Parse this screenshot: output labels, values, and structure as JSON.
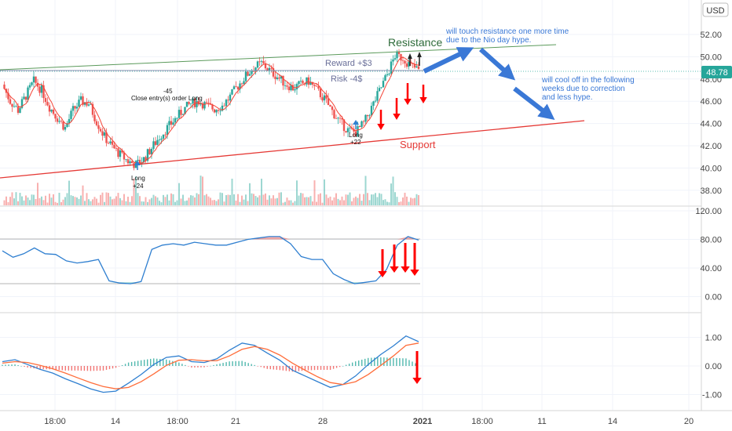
{
  "currency": "USD",
  "current_price": "48.78",
  "price_axis": {
    "ticks": [
      "52.00",
      "50.00",
      "48.00",
      "46.00",
      "44.00",
      "42.00",
      "40.00",
      "38.00"
    ],
    "values": [
      52,
      50,
      48,
      46,
      44,
      42,
      40,
      38
    ]
  },
  "oscillator_axis": {
    "ticks": [
      "120.00",
      "80.00",
      "40.00",
      "0.00"
    ],
    "values": [
      120,
      80,
      40,
      0
    ]
  },
  "macd_axis": {
    "ticks": [
      "1.00",
      "0.00",
      "-1.00"
    ],
    "values": [
      1,
      0,
      -1
    ]
  },
  "time_axis": {
    "ticks": [
      "18:00",
      "14",
      "18:00",
      "21",
      "28",
      "2021",
      "18:00",
      "11",
      "14",
      "20"
    ],
    "bold_index": 5
  },
  "annotations": {
    "resistance": "Resistance",
    "support": "Support",
    "reward": "Reward +$3",
    "risk": "Risk -4$",
    "trade_exit_amount": "-45",
    "trade_exit_label": "Close entry(s) order Long",
    "long1_label": "Long",
    "long1_amount": "+24",
    "long2_label": "Long",
    "long2_amount": "+22",
    "note_top": [
      "will touch resistance one more time",
      "due to the Nio day hype."
    ],
    "note_bottom": [
      "will cool off in the following",
      "weeks due to correction",
      "and less hype."
    ]
  },
  "colors": {
    "up": "#26a69a",
    "down": "#ef5350",
    "ma": "#f44336",
    "resistance": "#5b9a5b",
    "support": "#e53935",
    "note": "#3a78d6",
    "signal_arrow": "#ff0000",
    "blue_line": "#2f7fd0",
    "orange_line": "#ff6d3a"
  },
  "chart_data": {
    "type": "line",
    "title": "",
    "ylabel": "USD",
    "ylim": [
      37,
      53
    ],
    "x_ticks": [
      "18:00",
      "14",
      "18:00",
      "21",
      "28",
      "2021",
      "18:00",
      "11",
      "14",
      "20"
    ],
    "series": [
      {
        "values": [
          47.5,
          46.0,
          45.2,
          46.5,
          47.8,
          47.0,
          45.5,
          44.5,
          43.6,
          45.2,
          46.0,
          45.8,
          44.2,
          42.8,
          41.9,
          41.2,
          40.6,
          40.3,
          40.8,
          41.8,
          42.8,
          43.6,
          44.4,
          45.2,
          45.8,
          46.0,
          45.6,
          45.3,
          45.6,
          46.4,
          47.4,
          48.3,
          49.0,
          49.4,
          48.8,
          48.2,
          47.6,
          47.2,
          47.5,
          47.8,
          47.0,
          46.2,
          45.1,
          44.1,
          43.4,
          43.2,
          44.0,
          45.4,
          46.9,
          48.4,
          50.1,
          49.9,
          49.2,
          48.78
        ]
      }
    ],
    "resistance_line": {
      "x_ticks_span": [
        "start",
        "after 18:00"
      ],
      "price_start": 48.9,
      "price_end": 51.2
    },
    "support_line": {
      "price_start": 39.2,
      "price_end": 44.3
    },
    "stochastic_rsi": [
      64,
      55,
      60,
      68,
      60,
      59,
      50,
      47,
      49,
      52,
      22,
      19,
      18,
      21,
      66,
      72,
      74,
      72,
      76,
      74,
      72,
      72,
      76,
      80,
      82,
      84,
      84,
      74,
      56,
      52,
      52,
      32,
      24,
      18,
      20,
      22,
      38,
      72,
      84,
      79
    ],
    "macd_line": [
      0.15,
      0.22,
      0.05,
      -0.12,
      -0.25,
      -0.45,
      -0.62,
      -0.8,
      -0.92,
      -0.88,
      -0.6,
      -0.3,
      0.05,
      0.3,
      0.35,
      0.15,
      0.12,
      0.25,
      0.55,
      0.8,
      0.72,
      0.45,
      0.2,
      -0.15,
      -0.35,
      -0.55,
      -0.75,
      -0.65,
      -0.35,
      0.05,
      0.4,
      0.7,
      1.05,
      0.85
    ],
    "signal_line": [
      0.1,
      0.15,
      0.12,
      0.02,
      -0.1,
      -0.25,
      -0.42,
      -0.58,
      -0.72,
      -0.8,
      -0.75,
      -0.55,
      -0.28,
      0.02,
      0.2,
      0.22,
      0.18,
      0.18,
      0.35,
      0.58,
      0.68,
      0.58,
      0.38,
      0.1,
      -0.15,
      -0.38,
      -0.58,
      -0.65,
      -0.55,
      -0.3,
      0.02,
      0.35,
      0.72,
      0.8
    ]
  }
}
